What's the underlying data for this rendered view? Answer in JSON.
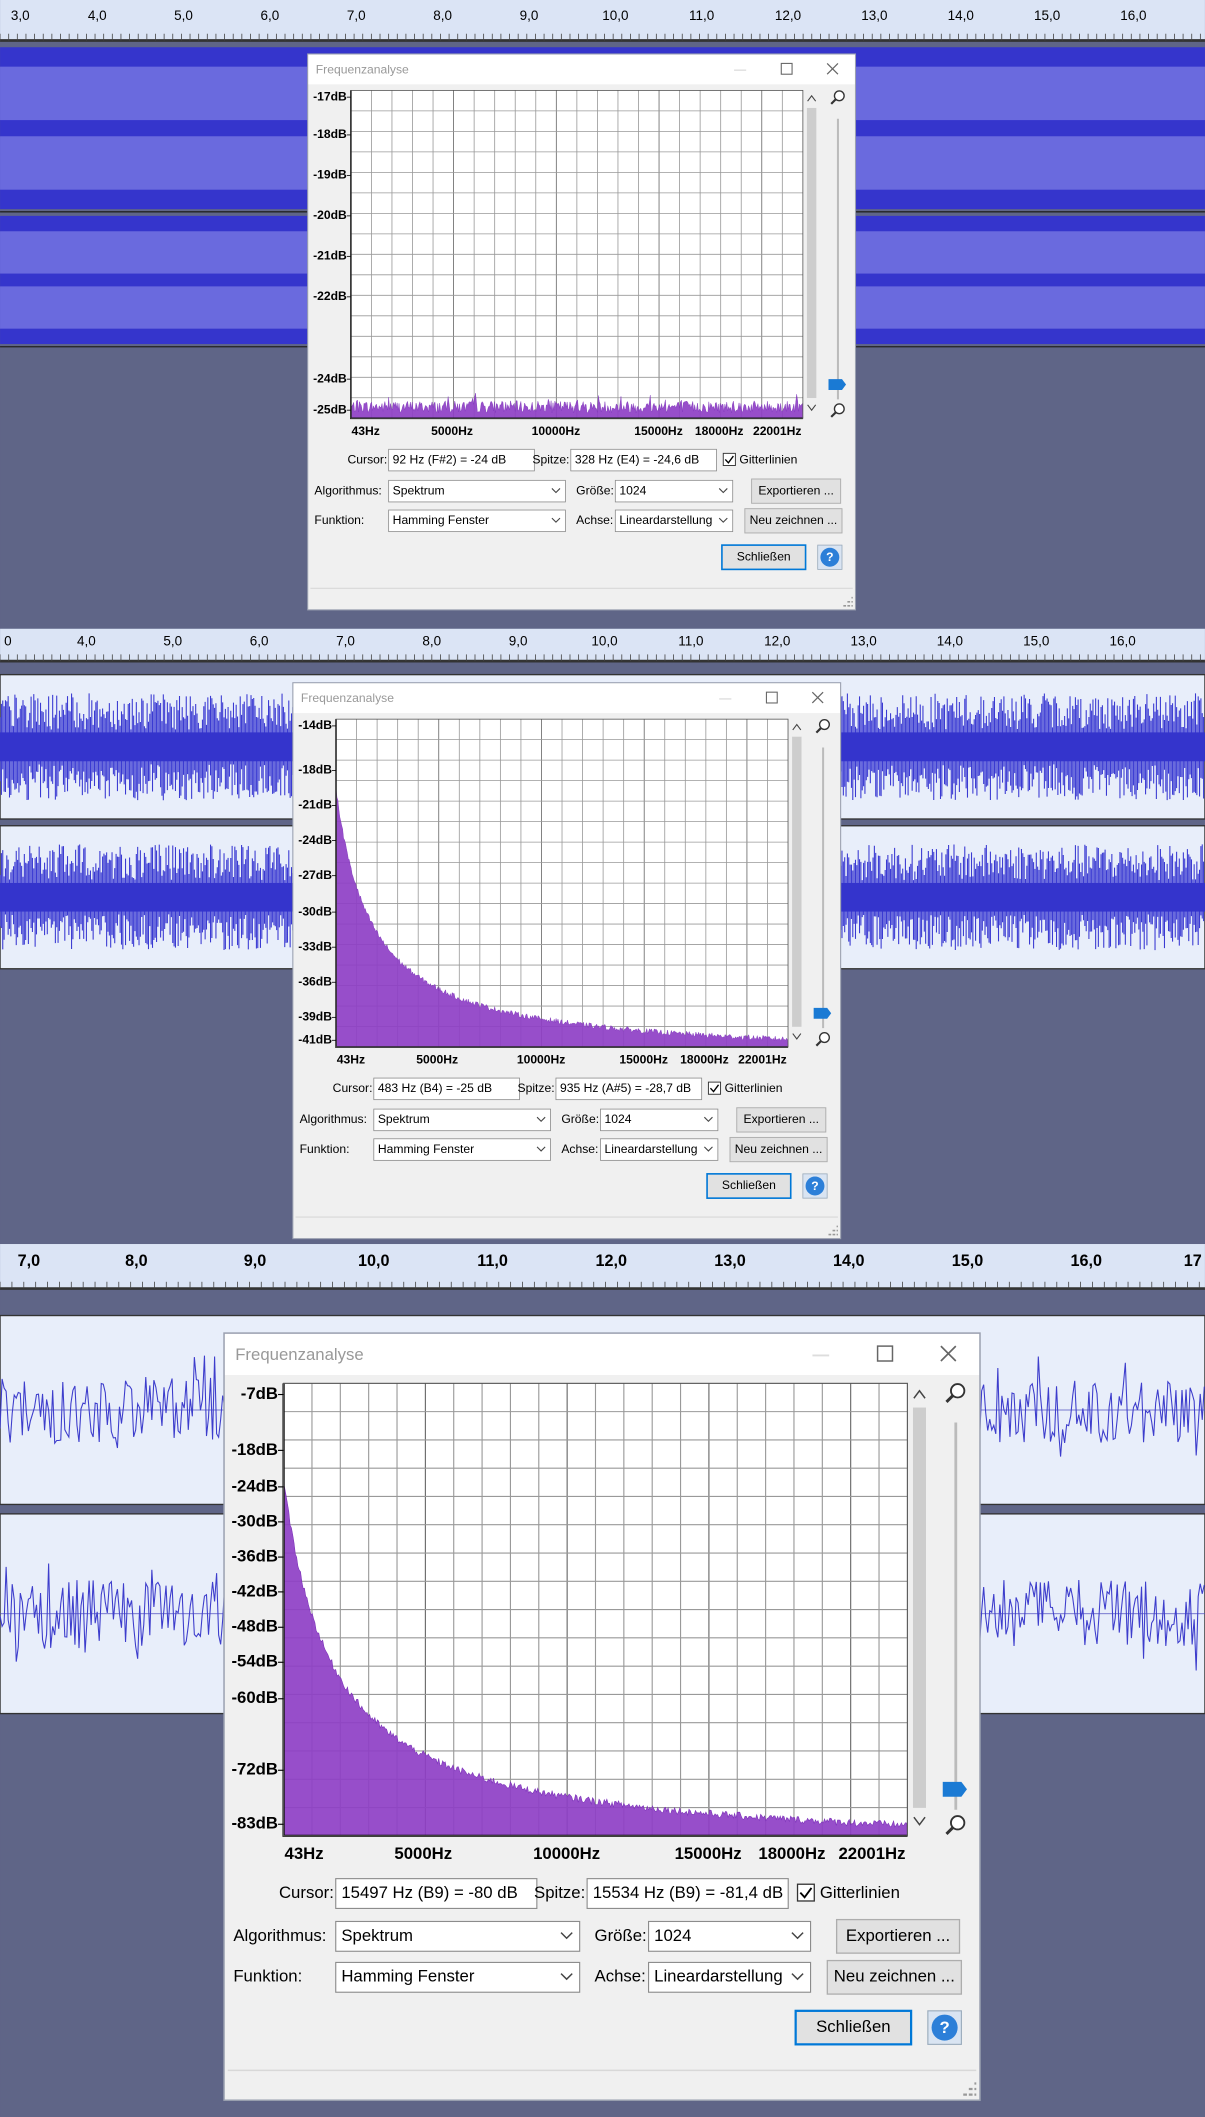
{
  "panels": [
    {
      "ruler": [
        "3,0",
        "4,0",
        "5,0",
        "6,0",
        "7,0",
        "8,0",
        "9,0",
        "10,0",
        "11,0",
        "12,0",
        "13,0",
        "14,0",
        "15,0",
        "16,0"
      ],
      "dialog": {
        "title": "Frequenzanalyse",
        "y_labels": [
          "-17dB",
          "-18dB",
          "-19dB",
          "-20dB",
          "-21dB",
          "-22dB",
          "-24dB",
          "-25dB"
        ],
        "x_labels": [
          "43Hz",
          "5000Hz",
          "10000Hz",
          "15000Hz",
          "18000Hz",
          "22001Hz"
        ],
        "cursor_label": "Cursor:",
        "cursor_value": "92 Hz (F#2) = -24 dB",
        "peak_label": "Spitze:",
        "peak_value": "328 Hz (E4) = -24,6 dB",
        "gridlines_label": "Gitterlinien",
        "algorithm_label": "Algorithmus:",
        "algorithm_value": "Spektrum",
        "size_label": "Größe:",
        "size_value": "1024",
        "export_button": "Exportieren ...",
        "function_label": "Funktion:",
        "function_value": "Hamming Fenster",
        "axis_label": "Achse:",
        "axis_value": "Lineardarstellung",
        "redraw_button": "Neu zeichnen ...",
        "close_button": "Schließen",
        "help_button": "?"
      }
    },
    {
      "ruler": [
        "0",
        "4,0",
        "5,0",
        "6,0",
        "7,0",
        "8,0",
        "9,0",
        "10,0",
        "11,0",
        "12,0",
        "13,0",
        "14,0",
        "15,0",
        "16,0"
      ],
      "dialog": {
        "title": "Frequenzanalyse",
        "y_labels": [
          "-14dB",
          "-18dB",
          "-21dB",
          "-24dB",
          "-27dB",
          "-30dB",
          "-33dB",
          "-36dB",
          "-39dB",
          "-41dB"
        ],
        "x_labels": [
          "43Hz",
          "5000Hz",
          "10000Hz",
          "15000Hz",
          "18000Hz",
          "22001Hz"
        ],
        "cursor_label": "Cursor:",
        "cursor_value": "483 Hz (B4) = -25 dB",
        "peak_label": "Spitze:",
        "peak_value": "935 Hz (A#5) = -28,7 dB",
        "gridlines_label": "Gitterlinien",
        "algorithm_label": "Algorithmus:",
        "algorithm_value": "Spektrum",
        "size_label": "Größe:",
        "size_value": "1024",
        "export_button": "Exportieren ...",
        "function_label": "Funktion:",
        "function_value": "Hamming Fenster",
        "axis_label": "Achse:",
        "axis_value": "Lineardarstellung",
        "redraw_button": "Neu zeichnen ...",
        "close_button": "Schließen",
        "help_button": "?"
      }
    },
    {
      "ruler": [
        "7,0",
        "8,0",
        "9,0",
        "10,0",
        "11,0",
        "12,0",
        "13,0",
        "14,0",
        "15,0",
        "16,0",
        "17"
      ],
      "dialog": {
        "title": "Frequenzanalyse",
        "y_labels": [
          "-7dB",
          "-18dB",
          "-24dB",
          "-30dB",
          "-36dB",
          "-42dB",
          "-48dB",
          "-54dB",
          "-60dB",
          "-72dB",
          "-83dB"
        ],
        "x_labels": [
          "43Hz",
          "5000Hz",
          "10000Hz",
          "15000Hz",
          "18000Hz",
          "22001Hz"
        ],
        "cursor_label": "Cursor:",
        "cursor_value": "15497 Hz (B9) = -80 dB",
        "peak_label": "Spitze:",
        "peak_value": "15534 Hz (B9) = -81,4 dB",
        "gridlines_label": "Gitterlinien",
        "algorithm_label": "Algorithmus:",
        "algorithm_value": "Spektrum",
        "size_label": "Größe:",
        "size_value": "1024",
        "export_button": "Exportieren ...",
        "function_label": "Funktion:",
        "function_value": "Hamming Fenster",
        "axis_label": "Achse:",
        "axis_value": "Lineardarstellung",
        "redraw_button": "Neu zeichnen ...",
        "close_button": "Schließen",
        "help_button": "?"
      }
    }
  ]
}
